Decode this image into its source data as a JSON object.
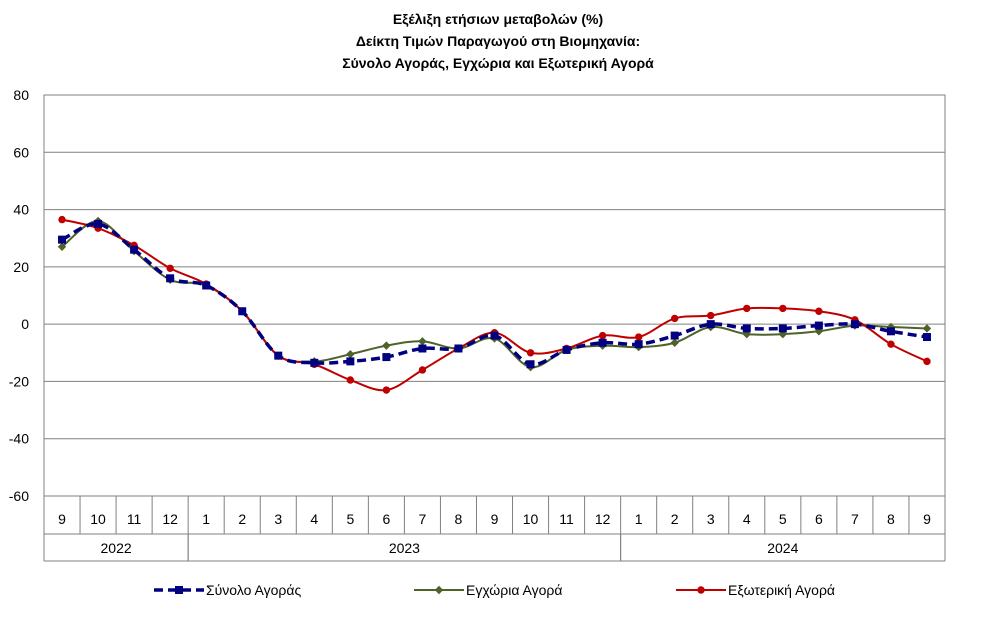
{
  "title_lines": [
    "Εξέλιξη ετήσιων μεταβολών (%)",
    "Δείκτη Τιμών Παραγωγού στη Βιομηχανία:",
    "Σύνολο Αγοράς, Εγχώρια και Εξωτερική Αγορά"
  ],
  "chart_data": {
    "type": "line",
    "title": "Εξέλιξη ετήσιων μεταβολών (%) Δείκτη Τιμών Παραγωγού στη Βιομηχανία: Σύνολο Αγοράς, Εγχώρια και Εξωτερική Αγορά",
    "categories": [
      "9",
      "10",
      "11",
      "12",
      "1",
      "2",
      "3",
      "4",
      "5",
      "6",
      "7",
      "8",
      "9",
      "10",
      "11",
      "12",
      "1",
      "2",
      "3",
      "4",
      "5",
      "6",
      "7",
      "8",
      "9"
    ],
    "year_groups": [
      {
        "label": "2022",
        "start": 0,
        "end": 3
      },
      {
        "label": "2023",
        "start": 4,
        "end": 15
      },
      {
        "label": "2024",
        "start": 16,
        "end": 24
      }
    ],
    "ylim": [
      -60,
      80
    ],
    "yticks": [
      80,
      60,
      40,
      20,
      0,
      -20,
      -40,
      -60
    ],
    "grid": true,
    "legend_position": "bottom",
    "series": [
      {
        "name": "Σύνολο Αγοράς",
        "color": "#000080",
        "style": "dashed",
        "marker": "square",
        "values": [
          29.5,
          35.0,
          26.0,
          16.0,
          13.5,
          4.5,
          -11.0,
          -13.5,
          -13.0,
          -11.5,
          -8.5,
          -8.5,
          -4.0,
          -14.0,
          -9.0,
          -6.5,
          -7.0,
          -4.0,
          0.0,
          -1.5,
          -1.5,
          -0.5,
          0.0,
          -2.5,
          -4.5
        ]
      },
      {
        "name": "Εγχώρια Αγορά",
        "color": "#4F6228",
        "style": "solid",
        "marker": "diamond",
        "values": [
          27.0,
          36.0,
          25.5,
          15.5,
          13.5,
          4.5,
          -11.0,
          -13.0,
          -10.5,
          -7.5,
          -6.0,
          -8.5,
          -5.0,
          -15.0,
          -9.0,
          -7.5,
          -8.0,
          -6.5,
          -1.0,
          -3.5,
          -3.5,
          -2.5,
          -0.5,
          -1.0,
          -1.5
        ]
      },
      {
        "name": "Εξωτερική Αγορά",
        "color": "#C00000",
        "style": "solid",
        "marker": "circle",
        "values": [
          36.5,
          33.5,
          27.5,
          19.5,
          14.0,
          4.5,
          -11.0,
          -14.0,
          -19.5,
          -23.0,
          -16.0,
          -8.5,
          -3.0,
          -10.0,
          -8.5,
          -4.0,
          -4.5,
          2.0,
          3.0,
          5.5,
          5.5,
          4.5,
          1.5,
          -7.0,
          -13.0
        ]
      }
    ]
  }
}
